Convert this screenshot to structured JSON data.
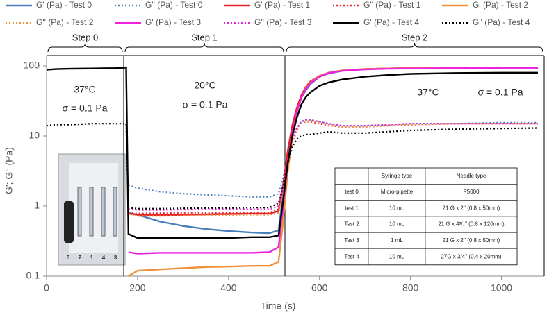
{
  "chart_data": {
    "type": "line",
    "x_label": "Time (s)",
    "y_label": "G'; G'' (Pa)",
    "xlim": [
      0,
      1100
    ],
    "xticks": [
      0,
      200,
      400,
      600,
      800,
      1000
    ],
    "ylim": [
      0.1,
      100
    ],
    "yticks": [
      0.1,
      1,
      10,
      100
    ],
    "ylog": true,
    "x": [
      0,
      20,
      50,
      100,
      150,
      170,
      175,
      180,
      200,
      250,
      300,
      350,
      400,
      450,
      490,
      510,
      520,
      530,
      540,
      550,
      560,
      570,
      580,
      600,
      620,
      650,
      700,
      750,
      800,
      900,
      1000,
      1080
    ],
    "series": [
      {
        "name": "G' (Pa) - Test 0",
        "color": "#4a7ebb",
        "dash": false,
        "values": [
          null,
          null,
          null,
          null,
          null,
          null,
          null,
          0.8,
          0.75,
          0.6,
          0.52,
          0.47,
          0.44,
          0.42,
          0.41,
          0.45,
          1.5,
          5,
          12,
          22,
          35,
          45,
          55,
          70,
          78,
          85,
          90,
          92,
          93,
          94,
          94,
          94
        ]
      },
      {
        "name": "G'' (Pa) - Test 0",
        "color": "#4a7ebb",
        "dash": true,
        "values": [
          null,
          null,
          null,
          null,
          null,
          null,
          null,
          2,
          1.8,
          1.6,
          1.5,
          1.45,
          1.4,
          1.35,
          1.35,
          1.5,
          2.5,
          5,
          9,
          13,
          16,
          17,
          17,
          16,
          15,
          14,
          14,
          14.5,
          15,
          15,
          15.5,
          15.5
        ]
      },
      {
        "name": "G' (Pa) - Test 1",
        "color": "#e8202a",
        "dash": false,
        "values": [
          null,
          null,
          null,
          null,
          null,
          null,
          null,
          0.78,
          0.75,
          0.74,
          0.75,
          0.76,
          0.77,
          0.78,
          0.78,
          0.85,
          2,
          6,
          14,
          25,
          38,
          50,
          60,
          72,
          80,
          86,
          90,
          92,
          93,
          94,
          95,
          95
        ]
      },
      {
        "name": "G'' (Pa) - Test 1",
        "color": "#e8202a",
        "dash": true,
        "values": [
          null,
          null,
          null,
          null,
          null,
          null,
          null,
          0.8,
          0.78,
          0.79,
          0.8,
          0.8,
          0.8,
          0.8,
          0.8,
          0.9,
          1.8,
          4,
          8,
          12,
          15,
          16,
          16,
          15,
          14,
          13.5,
          13.5,
          14,
          14.5,
          15,
          15,
          15
        ]
      },
      {
        "name": "G' (Pa) - Test 2",
        "color": "#f0913a",
        "dash": false,
        "values": [
          null,
          null,
          null,
          null,
          null,
          null,
          null,
          0.1,
          0.12,
          0.125,
          0.13,
          0.135,
          0.137,
          0.14,
          0.14,
          0.16,
          0.6,
          3,
          10,
          22,
          35,
          48,
          58,
          72,
          80,
          86,
          90,
          92,
          93,
          94,
          95,
          95
        ]
      },
      {
        "name": "G'' (Pa) - Test 2",
        "color": "#f0913a",
        "dash": true,
        "values": [
          null,
          null,
          null,
          null,
          null,
          null,
          null,
          0.78,
          0.72,
          0.72,
          0.73,
          0.74,
          0.74,
          0.75,
          0.75,
          0.8,
          1.5,
          4,
          8,
          12,
          15,
          16,
          16.5,
          15.5,
          14.5,
          13.5,
          13.5,
          14,
          14.5,
          15,
          15,
          15
        ]
      },
      {
        "name": "G' (Pa) - Test 3",
        "color": "#f020e0",
        "dash": false,
        "values": [
          null,
          null,
          null,
          null,
          null,
          null,
          null,
          0.22,
          0.21,
          0.215,
          0.215,
          0.215,
          0.215,
          0.215,
          0.22,
          0.26,
          1,
          4,
          11,
          22,
          35,
          47,
          57,
          70,
          79,
          85,
          89,
          91,
          92,
          93,
          94,
          94
        ]
      },
      {
        "name": "G'' (Pa) - Test 3",
        "color": "#f020e0",
        "dash": true,
        "values": [
          null,
          null,
          null,
          null,
          null,
          null,
          null,
          0.9,
          0.88,
          0.88,
          0.89,
          0.9,
          0.9,
          0.9,
          0.9,
          1,
          2,
          4.5,
          9,
          13,
          16,
          17,
          17,
          16,
          15,
          14,
          14,
          14.5,
          15,
          15,
          15,
          15
        ]
      },
      {
        "name": "G' (Pa) - Test 4",
        "color": "#000000",
        "dash": false,
        "values": [
          88,
          90,
          91,
          92,
          93,
          94,
          95,
          0.4,
          0.35,
          0.35,
          0.35,
          0.35,
          0.35,
          0.36,
          0.36,
          0.38,
          1.2,
          4,
          10,
          18,
          28,
          36,
          42,
          52,
          58,
          64,
          70,
          74,
          77,
          79,
          80,
          80
        ]
      },
      {
        "name": "G'' (Pa) - Test 4",
        "color": "#000000",
        "dash": true,
        "values": [
          14,
          14.5,
          14.5,
          15,
          15,
          15,
          15,
          0.95,
          0.92,
          0.92,
          0.93,
          0.94,
          0.94,
          0.95,
          0.95,
          1.1,
          2,
          4,
          7,
          9,
          10,
          10.5,
          10.5,
          11,
          11.5,
          11,
          11,
          11.5,
          12,
          12.5,
          12.8,
          13
        ]
      }
    ],
    "steps": [
      "Step 0",
      "Step 1",
      "Step 2"
    ],
    "annotations": [
      "37°C",
      "σ = 0.1 Pa",
      "20°C",
      "σ = 0.1 Pa",
      "37°C",
      "σ = 0.1 Pa"
    ],
    "photo_labels": [
      "0",
      "2",
      "1",
      "4",
      "3"
    ],
    "table": {
      "header": [
        "Syringe type",
        "Needle type"
      ],
      "rows": [
        [
          "test 0",
          "Micro-pipette",
          "P5000"
        ],
        [
          "test 1",
          "10 mL",
          "21 G x 2’’ (0.8 x 50mm)"
        ],
        [
          "Test 2",
          "10 mL",
          "21 G x 4³/₄’’ (0.8 x 120mm)"
        ],
        [
          "Test 3",
          "1 mL",
          "21 G x 2’’ (0.8 x 50mm)"
        ],
        [
          "Test 4",
          "10 mL",
          "27G x 3/4’’ (0.4 x 20mm)"
        ]
      ]
    }
  }
}
